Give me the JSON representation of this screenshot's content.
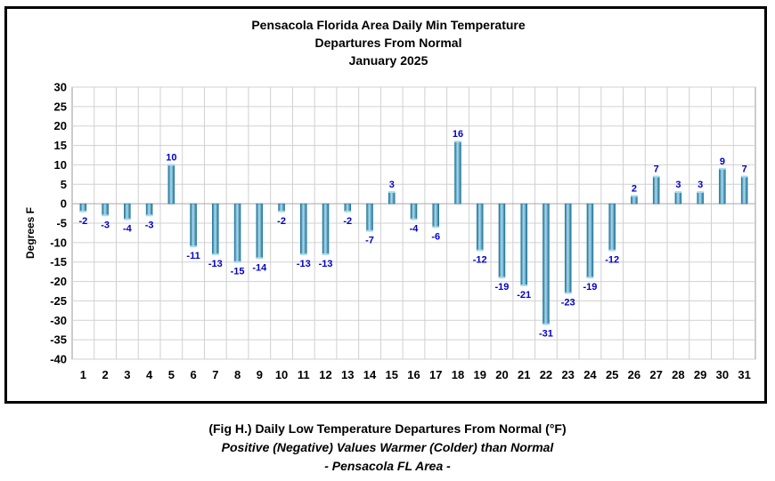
{
  "chart_data": {
    "type": "bar",
    "title": [
      "Pensacola Florida Area Daily Min Temperature",
      "Departures From Normal",
      "January 2025"
    ],
    "xlabel": "",
    "ylabel": "Degrees F",
    "ylim": [
      -40,
      30
    ],
    "yticks": [
      30,
      25,
      20,
      15,
      10,
      5,
      0,
      -5,
      -10,
      -15,
      -20,
      -25,
      -30,
      -35,
      -40
    ],
    "grid": true,
    "legend": "none",
    "categories": [
      "1",
      "2",
      "3",
      "4",
      "5",
      "6",
      "7",
      "8",
      "9",
      "10",
      "11",
      "12",
      "13",
      "14",
      "15",
      "16",
      "17",
      "18",
      "19",
      "20",
      "21",
      "22",
      "23",
      "24",
      "25",
      "26",
      "27",
      "28",
      "29",
      "30",
      "31"
    ],
    "values": [
      -2,
      -3,
      -4,
      -3,
      10,
      -11,
      -13,
      -15,
      -14,
      -2,
      -13,
      -13,
      -2,
      -7,
      3,
      -4,
      -6,
      16,
      -12,
      -19,
      -21,
      -31,
      -23,
      -19,
      -12,
      2,
      7,
      3,
      3,
      9,
      7
    ],
    "colors": {
      "bar": "#4fa3c7",
      "bar_light": "#a9dcf0",
      "bar_dark": "#1f6f94",
      "label": "#0000cc",
      "grid": "#d0d0d0"
    }
  },
  "caption": {
    "line1": "(Fig H.) Daily Low Temperature Departures From Normal (°F)",
    "line2": "Positive (Negative) Values Warmer (Colder) than Normal",
    "line3": "- Pensacola FL Area -"
  }
}
